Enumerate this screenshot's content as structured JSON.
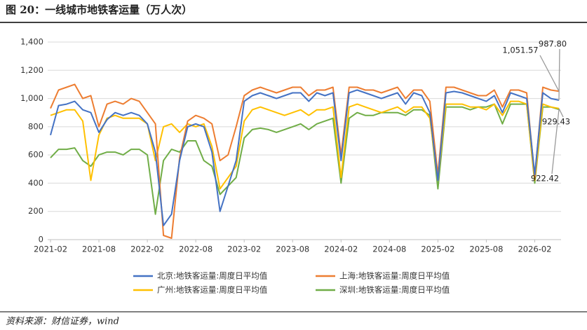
{
  "chart_data": {
    "type": "line",
    "title": "图 20：一线城市地铁客运量（万人次）",
    "source": "资料来源：财信证券，wind",
    "x": [
      "2021-02",
      "2021-03",
      "2021-04",
      "2021-05",
      "2021-06",
      "2021-07",
      "2021-08",
      "2021-09",
      "2021-10",
      "2021-11",
      "2021-12",
      "2022-01",
      "2022-02",
      "2022-03",
      "2022-04",
      "2022-05",
      "2022-06",
      "2022-07",
      "2022-08",
      "2022-09",
      "2022-10",
      "2022-11",
      "2022-12",
      "2023-01",
      "2023-02",
      "2023-03",
      "2023-04",
      "2023-05",
      "2023-06",
      "2023-07",
      "2023-08",
      "2023-09",
      "2023-10",
      "2023-11",
      "2023-12",
      "2024-01",
      "2024-02",
      "2024-03",
      "2024-04",
      "2024-05",
      "2024-06",
      "2024-07",
      "2024-08",
      "2024-09",
      "2024-10",
      "2024-11",
      "2024-12",
      "2025-01",
      "2025-02",
      "2025-03",
      "2025-04",
      "2025-05",
      "2025-06",
      "2025-07",
      "2025-08",
      "2025-09",
      "2025-10",
      "2025-11",
      "2025-12",
      "2026-01",
      "2026-02",
      "2026-03",
      "2026-04",
      "2026-05"
    ],
    "xlim": [
      "2021-02",
      "2026-05"
    ],
    "xticks": [
      "2021-02",
      "2021-08",
      "2022-02",
      "2022-08",
      "2023-02",
      "2023-08",
      "2024-02",
      "2024-08",
      "2025-02",
      "2025-08",
      "2026-02"
    ],
    "ylim": [
      0,
      1400
    ],
    "yticks": [
      0,
      200,
      400,
      600,
      800,
      {
        "value": 1000,
        "label": "1,000"
      },
      {
        "value": 1200,
        "label": "1,200"
      },
      {
        "value": 1400,
        "label": "1,400"
      }
    ],
    "grid": true,
    "series": [
      {
        "name": "北京:地铁客运量:周度日平均值",
        "color": "#4472c4",
        "values": [
          740,
          950,
          960,
          980,
          920,
          900,
          760,
          850,
          900,
          880,
          900,
          880,
          820,
          620,
          100,
          180,
          560,
          800,
          820,
          800,
          620,
          200,
          380,
          560,
          980,
          1020,
          1040,
          1020,
          1000,
          1020,
          1040,
          1040,
          980,
          1040,
          1020,
          1040,
          560,
          1040,
          1060,
          1040,
          1020,
          1000,
          1020,
          1040,
          960,
          1040,
          1020,
          900,
          420,
          1040,
          1050,
          1040,
          1020,
          1000,
          980,
          1020,
          900,
          1040,
          1020,
          1000,
          460,
          1040,
          1000,
          987.8
        ],
        "value_labels": [
          null,
          null,
          null,
          null,
          null,
          null,
          null,
          null,
          null,
          null,
          null,
          null,
          null,
          null,
          null,
          null,
          null,
          null,
          null,
          null,
          null,
          null,
          null,
          null,
          null,
          null,
          null,
          null,
          null,
          null,
          null,
          null,
          null,
          null,
          null,
          null,
          null,
          null,
          null,
          null,
          null,
          null,
          null,
          null,
          null,
          null,
          null,
          null,
          null,
          null,
          null,
          null,
          null,
          null,
          null,
          null,
          null,
          null,
          null,
          null,
          null,
          null,
          null,
          "987.80"
        ]
      },
      {
        "name": "上海:地铁客运量:周度日平均值",
        "color": "#ed7d31",
        "values": [
          930,
          1060,
          1080,
          1100,
          1000,
          1020,
          800,
          960,
          980,
          960,
          1000,
          980,
          900,
          820,
          30,
          10,
          580,
          840,
          880,
          860,
          820,
          560,
          600,
          800,
          1020,
          1060,
          1080,
          1060,
          1040,
          1060,
          1080,
          1080,
          1020,
          1060,
          1060,
          1080,
          600,
          1080,
          1080,
          1060,
          1060,
          1040,
          1060,
          1080,
          1000,
          1060,
          1060,
          980,
          460,
          1080,
          1080,
          1060,
          1040,
          1020,
          1020,
          1060,
          940,
          1060,
          1060,
          1040,
          440,
          1080,
          1060,
          1051.57
        ],
        "value_labels": [
          null,
          null,
          null,
          null,
          null,
          null,
          null,
          null,
          null,
          null,
          null,
          null,
          null,
          null,
          null,
          null,
          null,
          null,
          null,
          null,
          null,
          null,
          null,
          null,
          null,
          null,
          null,
          null,
          null,
          null,
          null,
          null,
          null,
          null,
          null,
          null,
          null,
          null,
          null,
          null,
          null,
          null,
          null,
          null,
          null,
          null,
          null,
          null,
          null,
          null,
          null,
          null,
          null,
          null,
          null,
          null,
          null,
          null,
          null,
          null,
          null,
          null,
          null,
          "1,051.57"
        ]
      },
      {
        "name": "广州:地铁客运量:周度日平均值",
        "color": "#ffc000",
        "values": [
          880,
          900,
          920,
          920,
          840,
          420,
          740,
          860,
          880,
          860,
          860,
          860,
          820,
          560,
          800,
          820,
          760,
          820,
          800,
          820,
          660,
          360,
          440,
          520,
          840,
          920,
          940,
          920,
          900,
          880,
          900,
          920,
          880,
          920,
          920,
          940,
          440,
          940,
          960,
          940,
          920,
          900,
          920,
          940,
          900,
          940,
          940,
          860,
          420,
          960,
          960,
          960,
          940,
          940,
          920,
          960,
          880,
          980,
          980,
          960,
          420,
          960,
          940,
          929.43
        ],
        "value_labels": [
          null,
          null,
          null,
          null,
          null,
          null,
          null,
          null,
          null,
          null,
          null,
          null,
          null,
          null,
          null,
          null,
          null,
          null,
          null,
          null,
          null,
          null,
          null,
          null,
          null,
          null,
          null,
          null,
          null,
          null,
          null,
          null,
          null,
          null,
          null,
          null,
          null,
          null,
          null,
          null,
          null,
          null,
          null,
          null,
          null,
          null,
          null,
          null,
          null,
          null,
          null,
          null,
          null,
          null,
          null,
          null,
          null,
          null,
          null,
          null,
          null,
          null,
          null,
          "929.43"
        ]
      },
      {
        "name": "深圳:地铁客运量:周度日平均值",
        "color": "#70ad47",
        "values": [
          580,
          640,
          640,
          650,
          560,
          520,
          600,
          620,
          620,
          600,
          640,
          640,
          600,
          180,
          560,
          640,
          620,
          700,
          700,
          560,
          520,
          320,
          380,
          440,
          720,
          780,
          790,
          780,
          760,
          780,
          800,
          820,
          780,
          820,
          840,
          860,
          400,
          860,
          900,
          880,
          880,
          900,
          900,
          900,
          880,
          920,
          920,
          880,
          360,
          940,
          940,
          940,
          920,
          940,
          940,
          960,
          820,
          960,
          960,
          960,
          400,
          940,
          940,
          922.42
        ],
        "value_labels": [
          null,
          null,
          null,
          null,
          null,
          null,
          null,
          null,
          null,
          null,
          null,
          null,
          null,
          null,
          null,
          null,
          null,
          null,
          null,
          null,
          null,
          null,
          null,
          null,
          null,
          null,
          null,
          null,
          null,
          null,
          null,
          null,
          null,
          null,
          null,
          null,
          null,
          null,
          null,
          null,
          null,
          null,
          null,
          null,
          null,
          null,
          null,
          null,
          null,
          null,
          null,
          null,
          null,
          null,
          null,
          null,
          null,
          null,
          null,
          null,
          null,
          null,
          null,
          "922.42"
        ]
      }
    ]
  }
}
